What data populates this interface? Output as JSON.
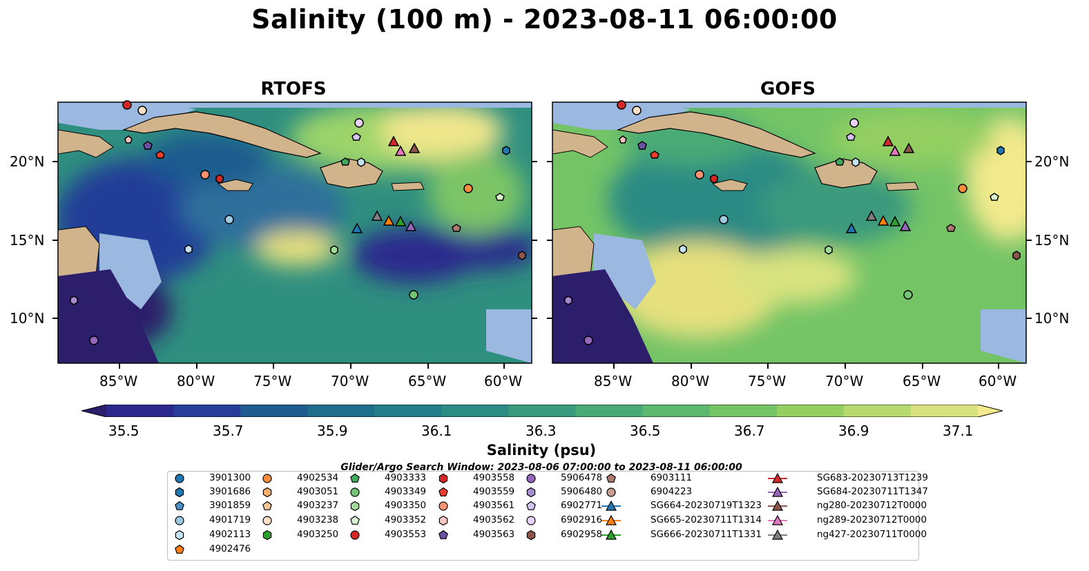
{
  "title": "Salinity (100 m) - 2023-08-11 06:00:00",
  "panels": [
    {
      "title": "RTOFS"
    },
    {
      "title": "GOFS"
    }
  ],
  "lat_labels": [
    "20°N",
    "15°N",
    "10°N"
  ],
  "lon_labels": [
    "85°W",
    "80°W",
    "75°W",
    "70°W",
    "65°W",
    "60°W"
  ],
  "colorbar": {
    "label": "Salinity (psu)",
    "ticks": [
      "35.5",
      "35.7",
      "35.9",
      "36.1",
      "36.3",
      "36.5",
      "36.7",
      "36.9",
      "37.1"
    ],
    "colors": [
      "#2c1e6b",
      "#2b2a8c",
      "#273d98",
      "#1f5b8f",
      "#1e6e8c",
      "#247e89",
      "#2c8b84",
      "#3a9a7d",
      "#4aaa76",
      "#5cb86e",
      "#74c466",
      "#94cf62",
      "#b6da6e",
      "#d8e37f",
      "#f3e98d"
    ]
  },
  "search_window": "Glider/Argo Search Window: 2023-08-06 07:00:00 to 2023-08-11 06:00:00",
  "legend": {
    "columns": [
      [
        {
          "label": "3901300",
          "shape": "circle",
          "color": "#1f77b4"
        },
        {
          "label": "3901686",
          "shape": "hexagon",
          "color": "#1f77b4"
        },
        {
          "label": "3901859",
          "shape": "pentagon",
          "color": "#4a8fc4"
        },
        {
          "label": "4901719",
          "shape": "circle",
          "color": "#9ecae1"
        },
        {
          "label": "4902113",
          "shape": "hexagon",
          "color": "#c6e3f3"
        },
        {
          "label": "4902476",
          "shape": "pentagon",
          "color": "#ff7f0e"
        }
      ],
      [
        {
          "label": "4902534",
          "shape": "circle",
          "color": "#fd8d3c"
        },
        {
          "label": "4903051",
          "shape": "hexagon",
          "color": "#fdae6b"
        },
        {
          "label": "4903237",
          "shape": "pentagon",
          "color": "#fdc896"
        },
        {
          "label": "4903238",
          "shape": "circle",
          "color": "#fde0c5"
        },
        {
          "label": "4903250",
          "shape": "hexagon",
          "color": "#2ca02c"
        }
      ],
      [
        {
          "label": "4903333",
          "shape": "pentagon",
          "color": "#41ab5d"
        },
        {
          "label": "4903349",
          "shape": "circle",
          "color": "#74c476"
        },
        {
          "label": "4903350",
          "shape": "hexagon",
          "color": "#a1d99b"
        },
        {
          "label": "4903352",
          "shape": "pentagon",
          "color": "#d9f5d0"
        },
        {
          "label": "4903553",
          "shape": "circle",
          "color": "#d62728"
        }
      ],
      [
        {
          "label": "4903558",
          "shape": "hexagon",
          "color": "#d62728"
        },
        {
          "label": "4903559",
          "shape": "pentagon",
          "color": "#ef3b2c"
        },
        {
          "label": "4903561",
          "shape": "circle",
          "color": "#fc9272"
        },
        {
          "label": "4903562",
          "shape": "hexagon",
          "color": "#fcc5c0"
        },
        {
          "label": "4903563",
          "shape": "pentagon",
          "color": "#6a51a3"
        }
      ],
      [
        {
          "label": "5906478",
          "shape": "circle",
          "color": "#9467bd"
        },
        {
          "label": "5906480",
          "shape": "hexagon",
          "color": "#a58bd0"
        },
        {
          "label": "6902771",
          "shape": "pentagon",
          "color": "#d4c4f0"
        },
        {
          "label": "6902916",
          "shape": "circle",
          "color": "#e8d2fb"
        },
        {
          "label": "6902958",
          "shape": "hexagon",
          "color": "#8c564b"
        }
      ],
      [
        {
          "label": "6903111",
          "shape": "pentagon",
          "color": "#b07b6f"
        },
        {
          "label": "6904223",
          "shape": "circle",
          "color": "#c49c94"
        },
        {
          "label": "SG664-20230719T1323",
          "shape": "triangle-line",
          "color": "#1f77b4"
        },
        {
          "label": "SG665-20230711T1314",
          "shape": "triangle-line",
          "color": "#ff7f0e"
        },
        {
          "label": "SG666-20230711T1331",
          "shape": "triangle-line",
          "color": "#2ca02c"
        }
      ],
      [
        {
          "label": "SG683-20230713T1239",
          "shape": "triangle-line",
          "color": "#d62728"
        },
        {
          "label": "SG684-20230711T1347",
          "shape": "triangle-line",
          "color": "#9467bd"
        },
        {
          "label": "ng280-20230712T0000",
          "shape": "triangle-line",
          "color": "#8c564b"
        },
        {
          "label": "ng289-20230712T0000",
          "shape": "triangle-line",
          "color": "#e377c2"
        },
        {
          "label": "ng427-20230711T0000",
          "shape": "triangle-line",
          "color": "#7f7f7f"
        }
      ]
    ]
  }
}
